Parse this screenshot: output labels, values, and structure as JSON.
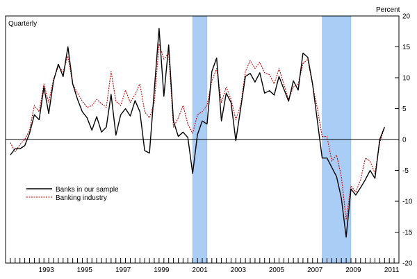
{
  "chart_data": {
    "type": "line",
    "frequency_label": "Quarterly",
    "unit_label": "Percent",
    "title": "",
    "xlabel": "",
    "ylabel": "",
    "x_start": 1991.5,
    "x_step": 0.25,
    "xlim": [
      1991.25,
      2011.75
    ],
    "ylim": [
      -20,
      20
    ],
    "y_ticks": [
      20,
      15,
      10,
      5,
      0,
      -5,
      -10,
      -15,
      -20
    ],
    "y_axis_side": "right",
    "x_tick_labels": [
      "1993",
      "1995",
      "1997",
      "1999",
      "2001",
      "2003",
      "2005",
      "2007",
      "2009",
      "2011"
    ],
    "x_tick_years": [
      1993,
      1995,
      1997,
      1999,
      2001,
      2003,
      2005,
      2007,
      2009,
      2011
    ],
    "zero_line": true,
    "grid": false,
    "legend_position": "lower-left",
    "recession_bands": [
      {
        "start": 2001.0,
        "end": 2001.75
      },
      {
        "start": 2007.75,
        "end": 2009.25
      }
    ],
    "series": [
      {
        "name": "Banks in our sample",
        "color": "#000000",
        "style": "solid",
        "values": [
          -2.5,
          -1.5,
          -1.5,
          -1.0,
          1.0,
          4.0,
          3.2,
          8.5,
          4.2,
          9.5,
          12.2,
          10.2,
          15.0,
          9.0,
          6.5,
          4.5,
          3.5,
          1.5,
          3.7,
          1.2,
          2.0,
          7.3,
          0.7,
          4.0,
          5.0,
          3.8,
          6.3,
          4.5,
          -1.8,
          -2.2,
          8.0,
          18.0,
          7.0,
          15.3,
          3.0,
          0.5,
          1.2,
          0.3,
          -5.5,
          0.8,
          3.0,
          2.5,
          11.0,
          13.2,
          3.0,
          7.5,
          6.0,
          -0.2,
          5.0,
          10.2,
          10.7,
          9.3,
          10.8,
          7.5,
          7.9,
          7.2,
          10.2,
          8.2,
          6.2,
          9.5,
          8.0,
          14.0,
          13.3,
          9.0,
          3.0,
          -3.0,
          -3.0,
          -4.5,
          -6.0,
          -9.5,
          -15.8,
          -8.0,
          -9.0,
          -7.8,
          -6.5,
          -5.0,
          -6.3,
          0.0,
          2.0
        ]
      },
      {
        "name": "Banking industry",
        "color": "#cc0000",
        "style": "dotted",
        "values": [
          -0.5,
          -2.0,
          -0.8,
          0.0,
          1.5,
          5.5,
          4.5,
          9.0,
          6.0,
          9.8,
          11.8,
          11.0,
          13.5,
          9.0,
          7.5,
          6.2,
          5.2,
          5.5,
          6.5,
          5.8,
          5.2,
          11.0,
          6.2,
          5.5,
          8.0,
          6.0,
          7.3,
          9.0,
          4.5,
          3.5,
          6.0,
          15.5,
          13.0,
          14.0,
          2.0,
          3.5,
          5.5,
          2.5,
          1.0,
          4.0,
          4.5,
          5.5,
          9.5,
          11.5,
          6.0,
          8.5,
          6.5,
          3.2,
          5.5,
          11.0,
          12.8,
          11.5,
          12.5,
          10.8,
          10.5,
          9.0,
          11.5,
          9.0,
          6.5,
          8.5,
          9.0,
          12.3,
          13.0,
          8.8,
          5.0,
          0.5,
          0.5,
          -3.5,
          -2.5,
          -6.0,
          -13.0,
          -7.5,
          -8.5,
          -6.5,
          -3.0,
          -3.5,
          -5.5,
          -0.5,
          2.0
        ]
      }
    ]
  }
}
